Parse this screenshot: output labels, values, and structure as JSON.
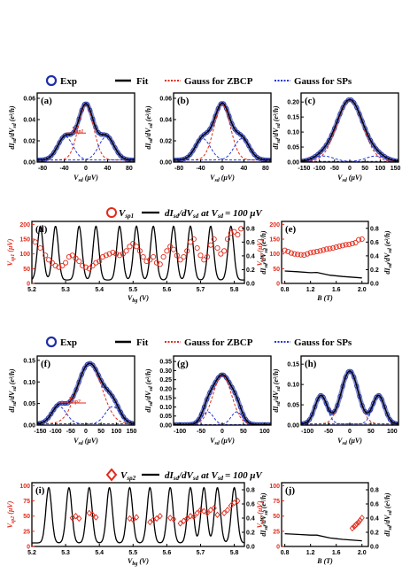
{
  "colors": {
    "exp": "#1f2fa8",
    "fit": "#000000",
    "zbcp": "#e02a1a",
    "sp": "#2236d6",
    "axis_red": "#e02a1a",
    "data_red": "#e02a1a"
  },
  "legend_top": [
    {
      "label": "Exp",
      "kind": "circle-blue"
    },
    {
      "label": "Fit",
      "kind": "line-black"
    },
    {
      "label": "Gauss for ZBCP",
      "kind": "dash-red"
    },
    {
      "label": "Gauss for SPs",
      "kind": "dash-blue"
    }
  ],
  "legend_mid": {
    "series1": "V",
    "series1_sub": "sp1",
    "series2": "dI",
    "series2_tail": "at V",
    "eq": "= 100 μV"
  },
  "legend_bottom": {
    "series1": "V",
    "series1_sub": "sp2",
    "series2": "dI",
    "series2_tail": "at V",
    "eq": "= 100 μV"
  },
  "panel_labels": [
    "(a)",
    "(b)",
    "(c)",
    "(d)",
    "(e)",
    "(f)",
    "(g)",
    "(h)",
    "(i)",
    "(j)"
  ],
  "axis_text": {
    "vsd_x": "V",
    "vsd_x_sub": "sd",
    "vsd_x_unit": "(μV)",
    "didv": "dI",
    "didv_sub1": "sd",
    "didv_mid": "/dV",
    "didv_sub2": "sd",
    "didv_unit": "(e²/h)",
    "vbg": "V",
    "vbg_sub": "bg",
    "vbg_unit": "(V)",
    "bfield": "B",
    "bfield_unit": "(T)",
    "vsp": "V",
    "vsp_sub1": "sp",
    "vsp_unit": "(μV)"
  },
  "chart_data": [
    {
      "panel": "(a)",
      "type": "line",
      "xlim": [
        -90,
        90
      ],
      "ylim": [
        0,
        0.065
      ],
      "xticks": [
        -80,
        -40,
        0,
        40,
        80
      ],
      "yticks": [
        0.0,
        0.02,
        0.04,
        0.06
      ],
      "series": [
        {
          "name": "Exp",
          "kind": "exp"
        },
        {
          "name": "Fit",
          "kind": "fit"
        },
        {
          "name": "Gauss for ZBCP",
          "kind": "zbcp"
        },
        {
          "name": "Gauss for SPs",
          "kind": "sp"
        }
      ],
      "params": {
        "zbcp": {
          "a": 0.052,
          "mu": 0,
          "s": 14
        },
        "sp": {
          "a": 0.022,
          "mu": 38,
          "s": 14
        },
        "offset": 0.002
      },
      "annotation": "V",
      "annotation_sub": "sp1"
    },
    {
      "panel": "(b)",
      "type": "line",
      "xlim": [
        -90,
        90
      ],
      "ylim": [
        0,
        0.065
      ],
      "xticks": [
        -80,
        -40,
        0,
        40,
        80
      ],
      "yticks": [
        0.0,
        0.02,
        0.04,
        0.06
      ],
      "params": {
        "zbcp": {
          "a": 0.052,
          "mu": 0,
          "s": 15
        },
        "sp": {
          "a": 0.02,
          "mu": 36,
          "s": 14
        },
        "offset": 0.002
      }
    },
    {
      "panel": "(c)",
      "type": "line",
      "xlim": [
        -160,
        160
      ],
      "ylim": [
        0,
        0.23
      ],
      "xticks": [
        -150,
        -100,
        -50,
        0,
        50,
        100,
        150
      ],
      "yticks": [
        0.0,
        0.05,
        0.1,
        0.15,
        0.2
      ],
      "params": {
        "zbcp": {
          "a": 0.205,
          "mu": 0,
          "s": 42
        },
        "sp": {
          "a": 0.018,
          "mu": 85,
          "s": 32
        },
        "offset": 0.002
      }
    },
    {
      "panel": "(d)",
      "type": "line+scatter",
      "xlim": [
        5.2,
        5.83
      ],
      "ylim_left": [
        0,
        210
      ],
      "ylim_right": [
        0,
        0.9
      ],
      "xticks": [
        5.2,
        5.3,
        5.4,
        5.5,
        5.6,
        5.7,
        5.8
      ],
      "yticks_left": [
        0,
        50,
        100,
        150,
        200
      ],
      "yticks_right": [
        0.0,
        0.2,
        0.4,
        0.6,
        0.8
      ],
      "peaks": [
        5.225,
        5.27,
        5.34,
        5.39,
        5.46,
        5.51,
        5.56,
        5.62,
        5.67,
        5.73,
        5.79
      ],
      "vsp_points": [
        [
          5.21,
          140
        ],
        [
          5.225,
          120
        ],
        [
          5.24,
          95
        ],
        [
          5.25,
          80
        ],
        [
          5.26,
          70
        ],
        [
          5.27,
          60
        ],
        [
          5.28,
          55
        ],
        [
          5.29,
          60
        ],
        [
          5.3,
          70
        ],
        [
          5.31,
          90
        ],
        [
          5.32,
          95
        ],
        [
          5.33,
          85
        ],
        [
          5.34,
          75
        ],
        [
          5.35,
          60
        ],
        [
          5.36,
          55
        ],
        [
          5.37,
          50
        ],
        [
          5.38,
          60
        ],
        [
          5.39,
          70
        ],
        [
          5.4,
          75
        ],
        [
          5.41,
          90
        ],
        [
          5.42,
          95
        ],
        [
          5.43,
          100
        ],
        [
          5.44,
          105
        ],
        [
          5.45,
          100
        ],
        [
          5.46,
          95
        ],
        [
          5.47,
          100
        ],
        [
          5.48,
          110
        ],
        [
          5.49,
          125
        ],
        [
          5.5,
          135
        ],
        [
          5.51,
          125
        ],
        [
          5.52,
          110
        ],
        [
          5.53,
          90
        ],
        [
          5.54,
          75
        ],
        [
          5.55,
          80
        ],
        [
          5.56,
          90
        ],
        [
          5.57,
          70
        ],
        [
          5.58,
          65
        ],
        [
          5.59,
          90
        ],
        [
          5.6,
          110
        ],
        [
          5.61,
          125
        ],
        [
          5.62,
          115
        ],
        [
          5.63,
          95
        ],
        [
          5.64,
          80
        ],
        [
          5.65,
          90
        ],
        [
          5.66,
          110
        ],
        [
          5.67,
          140
        ],
        [
          5.68,
          150
        ],
        [
          5.69,
          120
        ],
        [
          5.7,
          95
        ],
        [
          5.71,
          80
        ],
        [
          5.72,
          90
        ],
        [
          5.73,
          130
        ],
        [
          5.74,
          150
        ],
        [
          5.75,
          120
        ],
        [
          5.76,
          100
        ],
        [
          5.77,
          110
        ],
        [
          5.78,
          150
        ],
        [
          5.79,
          170
        ],
        [
          5.8,
          175
        ],
        [
          5.81,
          165
        ],
        [
          5.82,
          185
        ]
      ]
    },
    {
      "panel": "(e)",
      "type": "line+scatter",
      "xlim": [
        0.75,
        2.1
      ],
      "ylim_left": [
        0,
        210
      ],
      "ylim_right": [
        0,
        0.9
      ],
      "xticks": [
        0.8,
        1.2,
        1.6,
        2.0
      ],
      "yticks_left": [
        0,
        50,
        100,
        150,
        200
      ],
      "yticks_right": [
        0.0,
        0.2,
        0.4,
        0.6,
        0.8
      ],
      "vsp_points": [
        [
          0.8,
          112
        ],
        [
          0.85,
          108
        ],
        [
          0.9,
          103
        ],
        [
          0.95,
          100
        ],
        [
          1.0,
          98
        ],
        [
          1.05,
          97
        ],
        [
          1.1,
          96
        ],
        [
          1.15,
          100
        ],
        [
          1.2,
          104
        ],
        [
          1.25,
          106
        ],
        [
          1.3,
          108
        ],
        [
          1.35,
          110
        ],
        [
          1.4,
          113
        ],
        [
          1.45,
          116
        ],
        [
          1.5,
          118
        ],
        [
          1.55,
          120
        ],
        [
          1.6,
          123
        ],
        [
          1.65,
          126
        ],
        [
          1.7,
          128
        ],
        [
          1.75,
          131
        ],
        [
          1.8,
          132
        ],
        [
          1.85,
          135
        ],
        [
          1.9,
          138
        ],
        [
          1.95,
          148
        ],
        [
          2.0,
          150
        ]
      ],
      "didv_line": [
        [
          0.8,
          0.18
        ],
        [
          1.0,
          0.17
        ],
        [
          1.2,
          0.155
        ],
        [
          1.3,
          0.16
        ],
        [
          1.5,
          0.12
        ],
        [
          1.7,
          0.1
        ],
        [
          2.0,
          0.08
        ]
      ]
    },
    {
      "panel": "(f)",
      "type": "line",
      "xlim": [
        -160,
        160
      ],
      "ylim": [
        0,
        0.16
      ],
      "xticks": [
        -150,
        -100,
        -50,
        0,
        50,
        100,
        150
      ],
      "yticks": [
        0.0,
        0.05,
        0.1,
        0.15
      ],
      "params": {
        "zbcp": {
          "a": 0.14,
          "mu": 12,
          "s": 40
        },
        "sp": {
          "a": 0.04,
          "mu": 88,
          "s": 24
        },
        "offset": 0.003
      },
      "annotation": "V",
      "annotation_sub": "sp2"
    },
    {
      "panel": "(g)",
      "type": "line",
      "xlim": [
        -115,
        115
      ],
      "ylim": [
        0,
        0.38
      ],
      "xticks": [
        -100,
        -50,
        0,
        50,
        100
      ],
      "yticks": [
        0.0,
        0.05,
        0.1,
        0.15,
        0.2,
        0.25,
        0.3,
        0.35
      ],
      "params": {
        "zbcp": {
          "a": 0.27,
          "mu": 0,
          "s": 22
        },
        "sp": {
          "a": 0.07,
          "mu": 34,
          "s": 13
        },
        "offset": 0.003
      }
    },
    {
      "panel": "(h)",
      "type": "line",
      "xlim": [
        -115,
        115
      ],
      "ylim": [
        0,
        0.17
      ],
      "xticks": [
        -100,
        -50,
        0,
        50,
        100
      ],
      "yticks": [
        0.0,
        0.05,
        0.1,
        0.15
      ],
      "params": {
        "zbcp": {
          "a": 0.13,
          "mu": 0,
          "s": 20
        },
        "sp": {
          "a": 0.07,
          "mu": 68,
          "s": 14
        },
        "offset": 0.003
      }
    },
    {
      "panel": "(i)",
      "type": "line+scatter",
      "xlim": [
        5.2,
        5.83
      ],
      "ylim_left": [
        0,
        105
      ],
      "ylim_right": [
        0,
        0.9
      ],
      "xticks": [
        5.2,
        5.3,
        5.4,
        5.5,
        5.6,
        5.7,
        5.8
      ],
      "yticks_left": [
        0,
        25,
        50,
        75,
        100
      ],
      "yticks_right": [
        0.0,
        0.2,
        0.4,
        0.6,
        0.8
      ],
      "peaks": [
        5.25,
        5.31,
        5.37,
        5.43,
        5.49,
        5.55,
        5.61,
        5.67,
        5.71,
        5.75,
        5.8
      ],
      "vsp_points": [
        [
          5.32,
          47
        ],
        [
          5.33,
          50
        ],
        [
          5.34,
          46
        ],
        [
          5.37,
          55
        ],
        [
          5.38,
          52
        ],
        [
          5.39,
          48
        ],
        [
          5.49,
          46
        ],
        [
          5.5,
          44
        ],
        [
          5.51,
          48
        ],
        [
          5.55,
          40
        ],
        [
          5.56,
          44
        ],
        [
          5.57,
          46
        ],
        [
          5.58,
          50
        ],
        [
          5.61,
          47
        ],
        [
          5.62,
          45
        ],
        [
          5.64,
          38
        ],
        [
          5.65,
          42
        ],
        [
          5.66,
          46
        ],
        [
          5.67,
          50
        ],
        [
          5.68,
          49
        ],
        [
          5.69,
          55
        ],
        [
          5.7,
          60
        ],
        [
          5.71,
          58
        ],
        [
          5.72,
          55
        ],
        [
          5.73,
          60
        ],
        [
          5.74,
          63
        ],
        [
          5.75,
          52
        ],
        [
          5.77,
          55
        ],
        [
          5.78,
          60
        ],
        [
          5.79,
          67
        ],
        [
          5.8,
          72
        ],
        [
          5.81,
          75
        ]
      ]
    },
    {
      "panel": "(j)",
      "type": "line+scatter",
      "xlim": [
        0.75,
        2.1
      ],
      "ylim_left": [
        0,
        105
      ],
      "ylim_right": [
        0,
        0.9
      ],
      "xticks": [
        0.8,
        1.2,
        1.6,
        2.0
      ],
      "yticks_left": [
        0,
        25,
        50,
        75,
        100
      ],
      "yticks_right": [
        0.0,
        0.2,
        0.4,
        0.6,
        0.8
      ],
      "vsp_points": [
        [
          1.85,
          30
        ],
        [
          1.88,
          33
        ],
        [
          1.9,
          35
        ],
        [
          1.92,
          37
        ],
        [
          1.95,
          40
        ],
        [
          1.97,
          43
        ],
        [
          2.0,
          47
        ]
      ],
      "didv_line": [
        [
          0.8,
          0.18
        ],
        [
          1.0,
          0.17
        ],
        [
          1.2,
          0.16
        ],
        [
          1.3,
          0.16
        ],
        [
          1.5,
          0.12
        ],
        [
          1.7,
          0.1
        ],
        [
          2.0,
          0.08
        ]
      ]
    }
  ]
}
